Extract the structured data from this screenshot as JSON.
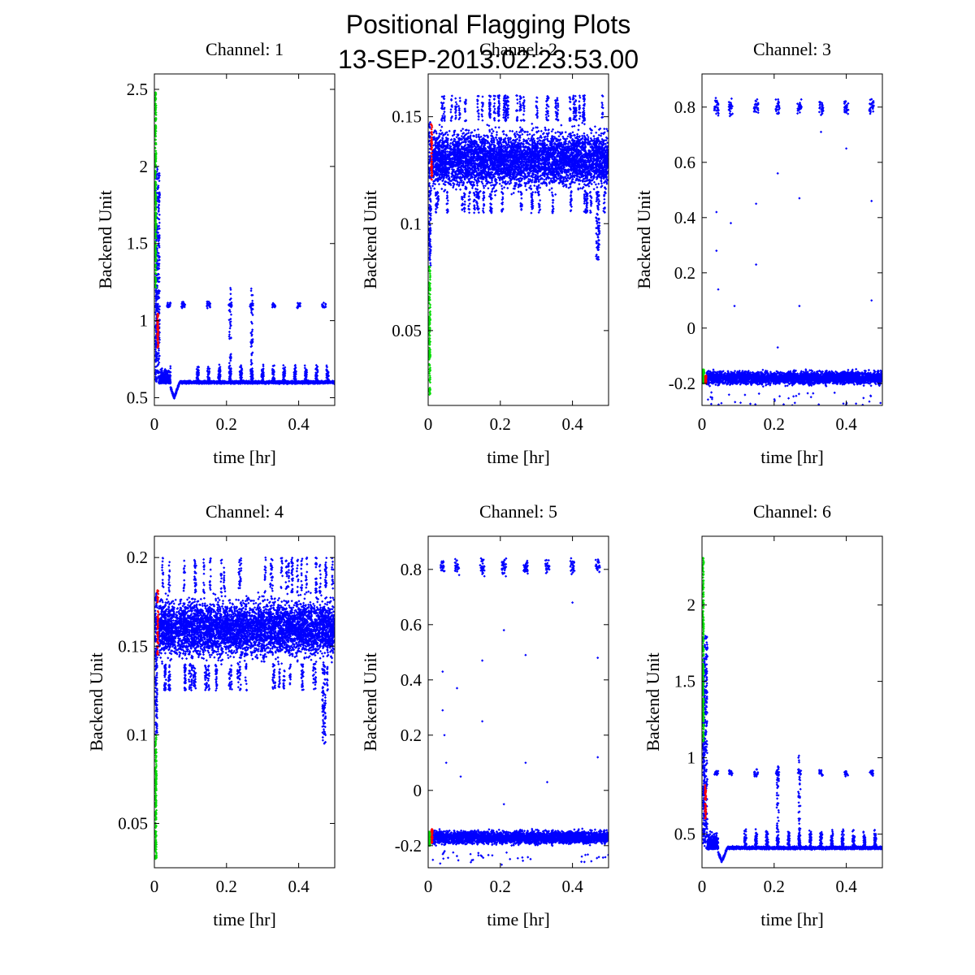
{
  "figure": {
    "title_line1": "Positional Flagging Plots",
    "title_line2": "13-SEP-2013:02:23:53.00"
  },
  "colors": {
    "main": "#0000ff",
    "flag_red": "#ff0000",
    "flag_green": "#00dd00",
    "axes": "#000000"
  },
  "chart_data": [
    {
      "type": "scatter",
      "title": "Channel: 1",
      "xlabel": "time [hr]",
      "ylabel": "Backend Unit",
      "xlim": [
        0,
        0.5
      ],
      "ylim": [
        0.45,
        2.6
      ],
      "xticks": [
        0,
        0.2,
        0.4
      ],
      "xtick_labels": [
        "0",
        "0.2",
        "0.4"
      ],
      "yticks": [
        0.5,
        1,
        1.5,
        2,
        2.5
      ],
      "ytick_labels": [
        "0.5",
        "1",
        "1.5",
        "2",
        "2.5"
      ],
      "baseline": 0.6,
      "noise": 0.012,
      "spike_times": [
        0.12,
        0.15,
        0.18,
        0.21,
        0.24,
        0.27,
        0.3,
        0.33,
        0.36,
        0.39,
        0.42,
        0.45,
        0.48
      ],
      "spike_peak": 0.7,
      "cluster_times": [
        0.04,
        0.08,
        0.15,
        0.21,
        0.27,
        0.33,
        0.4,
        0.47
      ],
      "cluster_level": 1.1,
      "green_range": [
        1.2,
        2.48
      ],
      "red_range": [
        0.82,
        1.05
      ],
      "initial_range": [
        0.6,
        2.0
      ],
      "dip": 0.5,
      "band_low": 0.58,
      "band_high": 0.64
    },
    {
      "type": "scatter",
      "title": "Channel: 2",
      "xlabel": "time [hr]",
      "ylabel": "Backend Unit",
      "xlim": [
        0,
        0.5
      ],
      "ylim": [
        0.015,
        0.17
      ],
      "xticks": [
        0,
        0.2,
        0.4
      ],
      "xtick_labels": [
        "0",
        "0.2",
        "0.4"
      ],
      "yticks": [
        0.05,
        0.1,
        0.15
      ],
      "ytick_labels": [
        "0.05",
        "0.1",
        "0.15"
      ],
      "band_low": 0.115,
      "band_high": 0.148,
      "band_center": 0.13,
      "band_top_max": 0.16,
      "band_bottom_min": 0.105,
      "green_range": [
        0.02,
        0.08
      ],
      "red_range": [
        0.12,
        0.148
      ],
      "dip_time": 0.47,
      "dip_low": 0.083
    },
    {
      "type": "scatter",
      "title": "Channel: 3",
      "xlabel": "time [hr]",
      "ylabel": "Backend Unit",
      "xlim": [
        0,
        0.5
      ],
      "ylim": [
        -0.28,
        0.92
      ],
      "xticks": [
        0,
        0.2,
        0.4
      ],
      "xtick_labels": [
        "0",
        "0.2",
        "0.4"
      ],
      "yticks": [
        -0.2,
        0,
        0.2,
        0.4,
        0.6,
        0.8
      ],
      "ytick_labels": [
        "-0.2",
        "0",
        "0.2",
        "0.4",
        "0.6",
        "0.8"
      ],
      "baseline": -0.18,
      "band_low": -0.21,
      "band_high": -0.15,
      "cluster_times": [
        0.04,
        0.08,
        0.15,
        0.21,
        0.27,
        0.33,
        0.4,
        0.47
      ],
      "cluster_level": 0.8,
      "outliers": [
        [
          0.04,
          0.42
        ],
        [
          0.04,
          0.28
        ],
        [
          0.045,
          0.14
        ],
        [
          0.08,
          0.38
        ],
        [
          0.09,
          0.08
        ],
        [
          0.15,
          0.45
        ],
        [
          0.15,
          0.23
        ],
        [
          0.21,
          0.56
        ],
        [
          0.21,
          -0.07
        ],
        [
          0.27,
          0.47
        ],
        [
          0.27,
          0.08
        ],
        [
          0.33,
          0.71
        ],
        [
          0.4,
          0.65
        ],
        [
          0.47,
          0.46
        ],
        [
          0.47,
          0.1
        ]
      ],
      "green_range": [
        -0.2,
        -0.15
      ],
      "red_range": [
        -0.2,
        -0.17
      ]
    },
    {
      "type": "scatter",
      "title": "Channel: 4",
      "xlabel": "time [hr]",
      "ylabel": "Backend Unit",
      "xlim": [
        0,
        0.5
      ],
      "ylim": [
        0.025,
        0.212
      ],
      "xticks": [
        0,
        0.2,
        0.4
      ],
      "xtick_labels": [
        "0",
        "0.2",
        "0.4"
      ],
      "yticks": [
        0.05,
        0.1,
        0.15,
        0.2
      ],
      "ytick_labels": [
        "0.05",
        "0.1",
        "0.15",
        "0.2"
      ],
      "band_low": 0.14,
      "band_high": 0.18,
      "band_center": 0.16,
      "band_top_max": 0.2,
      "band_bottom_min": 0.125,
      "green_range": [
        0.03,
        0.1
      ],
      "red_range": [
        0.145,
        0.182
      ],
      "dip_time": 0.47,
      "dip_low": 0.095
    },
    {
      "type": "scatter",
      "title": "Channel: 5",
      "xlabel": "time [hr]",
      "ylabel": "Backend Unit",
      "xlim": [
        0,
        0.5
      ],
      "ylim": [
        -0.28,
        0.92
      ],
      "xticks": [
        0,
        0.2,
        0.4
      ],
      "xtick_labels": [
        "0",
        "0.2",
        "0.4"
      ],
      "yticks": [
        -0.2,
        0,
        0.2,
        0.4,
        0.6,
        0.8
      ],
      "ytick_labels": [
        "-0.2",
        "0",
        "0.2",
        "0.4",
        "0.6",
        "0.8"
      ],
      "baseline": -0.17,
      "band_low": -0.2,
      "band_high": -0.14,
      "cluster_times": [
        0.04,
        0.08,
        0.15,
        0.21,
        0.27,
        0.33,
        0.4,
        0.47
      ],
      "cluster_level": 0.81,
      "outliers": [
        [
          0.04,
          0.43
        ],
        [
          0.04,
          0.29
        ],
        [
          0.045,
          0.2
        ],
        [
          0.05,
          0.1
        ],
        [
          0.08,
          0.37
        ],
        [
          0.09,
          0.05
        ],
        [
          0.15,
          0.47
        ],
        [
          0.15,
          0.25
        ],
        [
          0.21,
          0.58
        ],
        [
          0.21,
          -0.05
        ],
        [
          0.27,
          0.49
        ],
        [
          0.27,
          0.1
        ],
        [
          0.33,
          0.03
        ],
        [
          0.4,
          0.68
        ],
        [
          0.47,
          0.48
        ],
        [
          0.47,
          0.12
        ]
      ],
      "green_range": [
        -0.2,
        -0.15
      ],
      "red_range": [
        -0.19,
        -0.14
      ]
    },
    {
      "type": "scatter",
      "title": "Channel: 6",
      "xlabel": "time [hr]",
      "ylabel": "Backend Unit",
      "xlim": [
        0,
        0.5
      ],
      "ylim": [
        0.28,
        2.45
      ],
      "xticks": [
        0,
        0.2,
        0.4
      ],
      "xtick_labels": [
        "0",
        "0.2",
        "0.4"
      ],
      "yticks": [
        0.5,
        1,
        1.5,
        2
      ],
      "ytick_labels": [
        "0.5",
        "1",
        "1.5",
        "2"
      ],
      "baseline": 0.41,
      "noise": 0.012,
      "spike_times": [
        0.12,
        0.15,
        0.18,
        0.21,
        0.24,
        0.27,
        0.3,
        0.33,
        0.36,
        0.39,
        0.42,
        0.45,
        0.48
      ],
      "spike_peak": 0.52,
      "cluster_times": [
        0.04,
        0.08,
        0.15,
        0.21,
        0.27,
        0.33,
        0.4,
        0.47
      ],
      "cluster_level": 0.9,
      "green_range": [
        1.1,
        2.32
      ],
      "red_range": [
        0.6,
        0.82
      ],
      "initial_range": [
        0.42,
        1.8
      ],
      "dip": 0.32,
      "band_low": 0.39,
      "band_high": 0.44
    }
  ]
}
